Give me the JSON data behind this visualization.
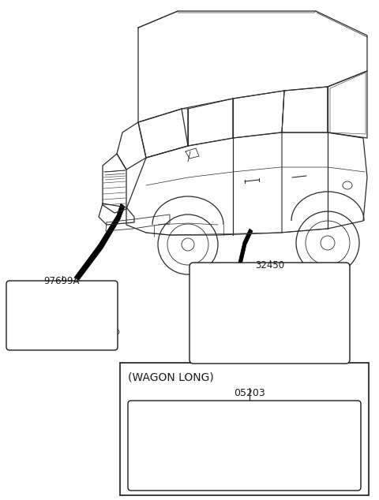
{
  "bg_color": "#ffffff",
  "line_color": "#1a1a1a",
  "label1_text": "97699A",
  "label2_text": "32450",
  "label3_text": "(WAGON LONG)",
  "label4_text": "05203",
  "car_line_color": "#2a2a2a",
  "car_line_lw": 0.9,
  "figw": 4.8,
  "figh": 6.34,
  "dpi": 100
}
